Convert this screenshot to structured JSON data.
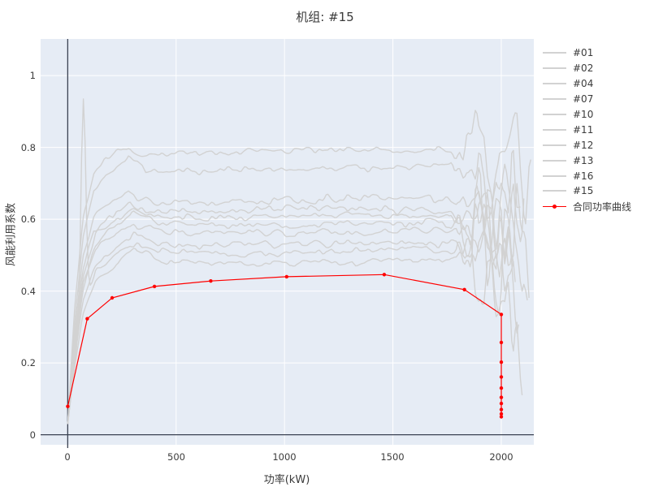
{
  "colors": {
    "plot_bg": "#E6ECF5",
    "grid": "#FFFFFF",
    "zero_line": "#3A4252",
    "unit_line": "#D2D2D2",
    "contract_line": "#FF0000",
    "text": "#3A3A3A"
  },
  "legend": {
    "items": [
      {
        "label": "#01",
        "color": "#D2D2D2"
      },
      {
        "label": "#02",
        "color": "#D2D2D2"
      },
      {
        "label": "#04",
        "color": "#D2D2D2"
      },
      {
        "label": "#07",
        "color": "#D2D2D2"
      },
      {
        "label": "#10",
        "color": "#D2D2D2"
      },
      {
        "label": "#11",
        "color": "#D2D2D2"
      },
      {
        "label": "#12",
        "color": "#D2D2D2"
      },
      {
        "label": "#13",
        "color": "#D2D2D2"
      },
      {
        "label": "#16",
        "color": "#D2D2D2"
      },
      {
        "label": "#15",
        "color": "#D2D2D2"
      },
      {
        "label": "合同功率曲线",
        "color": "#FF0000"
      }
    ]
  },
  "chart_data": {
    "type": "line",
    "title": "机组: #15",
    "xlabel": "功率(kW)",
    "ylabel": "风能利用系数",
    "xlim": [
      -125,
      2150
    ],
    "ylim": [
      -0.028,
      1.102
    ],
    "xticks": [
      0,
      500,
      1000,
      1500,
      2000
    ],
    "yticks": [
      0,
      0.2,
      0.4,
      0.6,
      0.8,
      1
    ],
    "grid": true,
    "legend_position": "outside-right",
    "contract": {
      "name": "合同功率曲线",
      "points": [
        [
          0,
          0.079
        ],
        [
          90,
          0.323
        ],
        [
          205,
          0.381
        ],
        [
          400,
          0.413
        ],
        [
          660,
          0.428
        ],
        [
          1010,
          0.44
        ],
        [
          1460,
          0.446
        ],
        [
          1830,
          0.404
        ],
        [
          2000,
          0.335
        ],
        [
          2000,
          0.257
        ],
        [
          2000,
          0.202
        ],
        [
          2000,
          0.161
        ],
        [
          2000,
          0.13
        ],
        [
          2000,
          0.104
        ],
        [
          2000,
          0.087
        ],
        [
          2000,
          0.07
        ],
        [
          2000,
          0.058
        ],
        [
          2000,
          0.05
        ]
      ]
    },
    "series": [
      {
        "name": "#01",
        "seed": 1,
        "plateau": 0.795,
        "anchors": [
          [
            0,
            0.03
          ],
          [
            30,
            0.34
          ],
          [
            70,
            0.6
          ],
          [
            120,
            0.73
          ],
          [
            180,
            0.775
          ],
          [
            260,
            0.795
          ],
          [
            340,
            0.78
          ],
          [
            600,
            0.785
          ],
          [
            1000,
            0.79
          ],
          [
            1400,
            0.795
          ],
          [
            1700,
            0.79
          ],
          [
            2000,
            0.78
          ]
        ],
        "tail": {
          "end_x": 2090,
          "end_y": 0.6,
          "amp": 0.22
        }
      },
      {
        "name": "#02",
        "seed": 2,
        "plateau": 0.74,
        "anchors": [
          [
            0,
            0.03
          ],
          [
            30,
            0.3
          ],
          [
            70,
            0.55
          ],
          [
            120,
            0.68
          ],
          [
            180,
            0.72
          ],
          [
            280,
            0.775
          ],
          [
            360,
            0.735
          ],
          [
            600,
            0.73
          ],
          [
            1000,
            0.74
          ],
          [
            1400,
            0.745
          ],
          [
            1800,
            0.75
          ],
          [
            2000,
            0.745
          ]
        ],
        "tail": {
          "end_x": 2140,
          "end_y": 0.7,
          "amp": 0.2
        }
      },
      {
        "name": "#04",
        "seed": 3,
        "plateau": 0.655,
        "anchors": [
          [
            0,
            0.03
          ],
          [
            30,
            0.27
          ],
          [
            70,
            0.5
          ],
          [
            120,
            0.6
          ],
          [
            180,
            0.635
          ],
          [
            280,
            0.675
          ],
          [
            380,
            0.645
          ],
          [
            700,
            0.65
          ],
          [
            1100,
            0.655
          ],
          [
            1500,
            0.66
          ],
          [
            1800,
            0.655
          ],
          [
            2000,
            0.65
          ]
        ],
        "tail": {
          "end_x": 2070,
          "end_y": 0.45,
          "amp": 0.2
        }
      },
      {
        "name": "#07",
        "seed": 4,
        "plateau": 0.625,
        "anchors": [
          [
            0,
            0.03
          ],
          [
            30,
            0.25
          ],
          [
            70,
            0.46
          ],
          [
            120,
            0.57
          ],
          [
            190,
            0.61
          ],
          [
            290,
            0.64
          ],
          [
            400,
            0.62
          ],
          [
            800,
            0.625
          ],
          [
            1200,
            0.63
          ],
          [
            1600,
            0.625
          ],
          [
            2000,
            0.615
          ]
        ],
        "tail": {
          "end_x": 2110,
          "end_y": 0.52,
          "amp": 0.22
        }
      },
      {
        "name": "#10",
        "seed": 5,
        "plateau": 0.607,
        "anchors": [
          [
            0,
            0.03
          ],
          [
            30,
            0.24
          ],
          [
            70,
            0.44
          ],
          [
            130,
            0.56
          ],
          [
            200,
            0.595
          ],
          [
            300,
            0.62
          ],
          [
            420,
            0.6
          ],
          [
            800,
            0.605
          ],
          [
            1200,
            0.61
          ],
          [
            1600,
            0.605
          ],
          [
            2000,
            0.595
          ]
        ],
        "tail": {
          "end_x": 2060,
          "end_y": 0.35,
          "amp": 0.24
        }
      },
      {
        "name": "#11",
        "seed": 6,
        "plateau": 0.585,
        "anchors": [
          [
            0,
            0.03
          ],
          [
            30,
            0.23
          ],
          [
            70,
            0.42
          ],
          [
            130,
            0.54
          ],
          [
            210,
            0.58
          ],
          [
            300,
            0.625
          ],
          [
            430,
            0.585
          ],
          [
            800,
            0.58
          ],
          [
            1200,
            0.585
          ],
          [
            1600,
            0.59
          ],
          [
            2000,
            0.58
          ]
        ],
        "tail": {
          "end_x": 2120,
          "end_y": 0.42,
          "amp": 0.2
        }
      },
      {
        "name": "#12",
        "seed": 7,
        "plateau": 0.565,
        "anchors": [
          [
            0,
            0.03
          ],
          [
            30,
            0.22
          ],
          [
            70,
            0.4
          ],
          [
            130,
            0.52
          ],
          [
            210,
            0.555
          ],
          [
            310,
            0.585
          ],
          [
            440,
            0.565
          ],
          [
            800,
            0.56
          ],
          [
            1200,
            0.565
          ],
          [
            1600,
            0.57
          ],
          [
            2000,
            0.56
          ]
        ],
        "tail": {
          "end_x": 2100,
          "end_y": 0.3,
          "amp": 0.26
        }
      },
      {
        "name": "#13",
        "seed": 8,
        "plateau": 0.53,
        "anchors": [
          [
            0,
            0.03
          ],
          [
            30,
            0.2
          ],
          [
            70,
            0.37
          ],
          [
            130,
            0.48
          ],
          [
            210,
            0.52
          ],
          [
            310,
            0.555
          ],
          [
            450,
            0.53
          ],
          [
            800,
            0.525
          ],
          [
            1200,
            0.53
          ],
          [
            1600,
            0.535
          ],
          [
            2000,
            0.525
          ]
        ],
        "tail": {
          "end_x": 2080,
          "end_y": 0.38,
          "amp": 0.22
        }
      },
      {
        "name": "#16",
        "seed": 9,
        "plateau": 0.51,
        "anchors": [
          [
            0,
            0.03
          ],
          [
            30,
            0.19
          ],
          [
            70,
            0.35
          ],
          [
            130,
            0.46
          ],
          [
            210,
            0.5
          ],
          [
            310,
            0.53
          ],
          [
            460,
            0.51
          ],
          [
            800,
            0.505
          ],
          [
            1200,
            0.51
          ],
          [
            1600,
            0.515
          ],
          [
            2000,
            0.505
          ]
        ],
        "spike": {
          "x": 72,
          "amp": 0.58,
          "w": 11
        },
        "tail": {
          "end_x": 2060,
          "end_y": 0.33,
          "amp": 0.2
        }
      },
      {
        "name": "#15",
        "seed": 10,
        "plateau": 0.48,
        "anchors": [
          [
            0,
            0.03
          ],
          [
            30,
            0.18
          ],
          [
            70,
            0.33
          ],
          [
            130,
            0.43
          ],
          [
            210,
            0.47
          ],
          [
            310,
            0.515
          ],
          [
            470,
            0.48
          ],
          [
            800,
            0.475
          ],
          [
            1200,
            0.48
          ],
          [
            1600,
            0.485
          ],
          [
            2000,
            0.475
          ]
        ],
        "tail": {
          "end_x": 2130,
          "end_y": 0.4,
          "amp": 0.24
        }
      }
    ]
  }
}
